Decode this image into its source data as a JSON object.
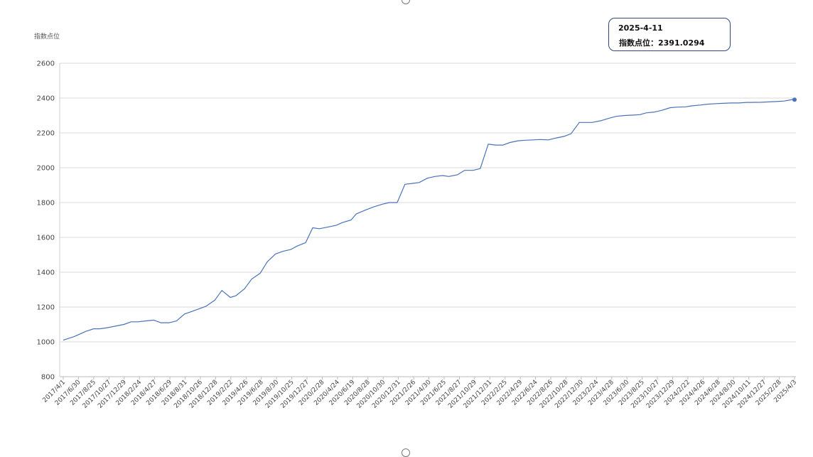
{
  "chart_data": {
    "type": "line",
    "title": "",
    "xlabel": "",
    "ylabel": "指数点位",
    "ylim": [
      800,
      2600
    ],
    "y_ticks": [
      800,
      1000,
      1200,
      1400,
      1600,
      1800,
      2000,
      2200,
      2400,
      2600
    ],
    "grid": true,
    "legend": "none",
    "line_color": "#4a72b8",
    "grid_color": "#d9d9d9",
    "x_tick_labels": [
      "2017/4/1",
      "2017/6/30",
      "2017/8/25",
      "2017/10/27",
      "2017/12/29",
      "2018/2/24",
      "2018/4/27",
      "2018/6/29",
      "2018/8/31",
      "2018/10/26",
      "2018/12/28",
      "2019/2/22",
      "2019/4/26",
      "2019/6/28",
      "2019/8/30",
      "2019/10/25",
      "2019/12/27",
      "2020/2/28",
      "2020/4/24",
      "2020/6/19",
      "2020/8/28",
      "2020/10/30",
      "2020/12/31",
      "2021/2/26",
      "2021/4/30",
      "2021/6/25",
      "2021/8/27",
      "2021/10/29",
      "2021/12/31",
      "2022/2/25",
      "2022/4/29",
      "2022/6/24",
      "2022/8/26",
      "2022/10/28",
      "2022/12/30",
      "2023/2/24",
      "2023/4/28",
      "2023/6/30",
      "2023/8/25",
      "2023/10/27",
      "2023/12/29",
      "2024/2/22",
      "2024/4/26",
      "2024/6/28",
      "2024/8/30",
      "2024/10/11",
      "2024/12/27",
      "2025/2/28",
      "2025/4/3"
    ],
    "series": [
      {
        "x": [
          "2017/4/1",
          "2017/5/15",
          "2017/6/30",
          "2017/8/1",
          "2017/8/25",
          "2017/9/20",
          "2017/10/27",
          "2017/11/30",
          "2017/12/29",
          "2018/1/26",
          "2018/2/24",
          "2018/3/30",
          "2018/4/27",
          "2018/5/31",
          "2018/6/29",
          "2018/7/31",
          "2018/8/31",
          "2018/9/28",
          "2018/10/26",
          "2018/11/30",
          "2018/12/28",
          "2019/1/31",
          "2019/2/22",
          "2019/3/29",
          "2019/4/26",
          "2019/5/31",
          "2019/6/28",
          "2019/7/31",
          "2019/8/30",
          "2019/9/30",
          "2019/10/25",
          "2019/11/29",
          "2019/12/27",
          "2020/1/23",
          "2020/2/28",
          "2020/3/31",
          "2020/4/24",
          "2020/5/29",
          "2020/6/19",
          "2020/7/31",
          "2020/8/28",
          "2020/9/30",
          "2020/10/30",
          "2020/11/30",
          "2020/12/31",
          "2021/1/29",
          "2021/2/26",
          "2021/3/31",
          "2021/4/30",
          "2021/5/31",
          "2021/6/25",
          "2021/7/30",
          "2021/8/27",
          "2021/9/30",
          "2021/10/29",
          "2021/11/30",
          "2021/12/31",
          "2022/1/28",
          "2022/2/25",
          "2022/3/31",
          "2022/4/29",
          "2022/5/31",
          "2022/6/24",
          "2022/7/29",
          "2022/8/26",
          "2022/9/30",
          "2022/10/28",
          "2022/11/30",
          "2022/12/30",
          "2023/1/20",
          "2023/2/24",
          "2023/3/31",
          "2023/4/28",
          "2023/5/31",
          "2023/6/30",
          "2023/7/31",
          "2023/8/25",
          "2023/9/28",
          "2023/10/27",
          "2023/11/30",
          "2023/12/29",
          "2024/1/31",
          "2024/2/22",
          "2024/3/29",
          "2024/4/26",
          "2024/5/31",
          "2024/6/28",
          "2024/7/31",
          "2024/8/30",
          "2024/9/30",
          "2024/10/11",
          "2024/11/29",
          "2024/12/27",
          "2025/1/27",
          "2025/2/28",
          "2025/3/21",
          "2025/4/3",
          "2025/4/11"
        ],
        "values": [
          1010,
          1030,
          1060,
          1075,
          1075,
          1080,
          1090,
          1100,
          1115,
          1115,
          1120,
          1125,
          1110,
          1110,
          1120,
          1160,
          1175,
          1190,
          1205,
          1240,
          1295,
          1255,
          1265,
          1305,
          1360,
          1395,
          1460,
          1505,
          1520,
          1530,
          1550,
          1570,
          1655,
          1650,
          1660,
          1670,
          1685,
          1700,
          1735,
          1760,
          1775,
          1790,
          1800,
          1800,
          1905,
          1910,
          1915,
          1940,
          1950,
          1955,
          1950,
          1960,
          1985,
          1985,
          1995,
          2135,
          2130,
          2130,
          2145,
          2155,
          2158,
          2160,
          2162,
          2160,
          2170,
          2180,
          2195,
          2260,
          2260,
          2260,
          2270,
          2285,
          2295,
          2300,
          2302,
          2305,
          2315,
          2320,
          2330,
          2345,
          2348,
          2350,
          2355,
          2360,
          2365,
          2368,
          2370,
          2372,
          2372,
          2375,
          2375,
          2376,
          2378,
          2380,
          2383,
          2388,
          2392,
          2391.0294
        ]
      }
    ]
  },
  "tooltip": {
    "date": "2025-4-11",
    "label": "指数点位：",
    "value": "2391.0294"
  }
}
